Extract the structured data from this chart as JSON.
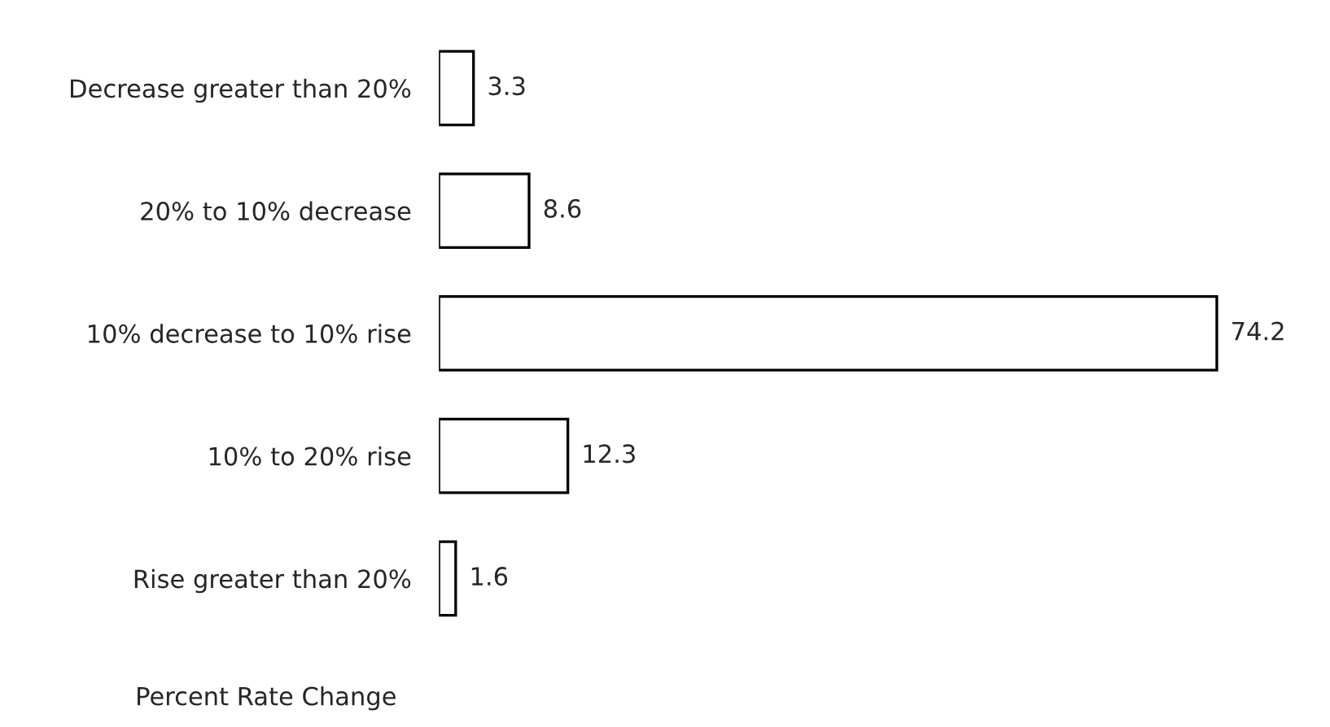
{
  "chart_data": {
    "type": "bar",
    "orientation": "horizontal",
    "xlabel": "Percent Rate Change",
    "categories": [
      "Decrease greater than 20%",
      "20% to 10% decrease",
      "10% decrease to 10% rise",
      "10% to 20% rise",
      "Rise greater than 20%"
    ],
    "values": [
      3.3,
      8.6,
      74.2,
      12.3,
      1.6
    ],
    "color": "#ffffff",
    "data_labels": true,
    "grid": false,
    "legend": false
  }
}
